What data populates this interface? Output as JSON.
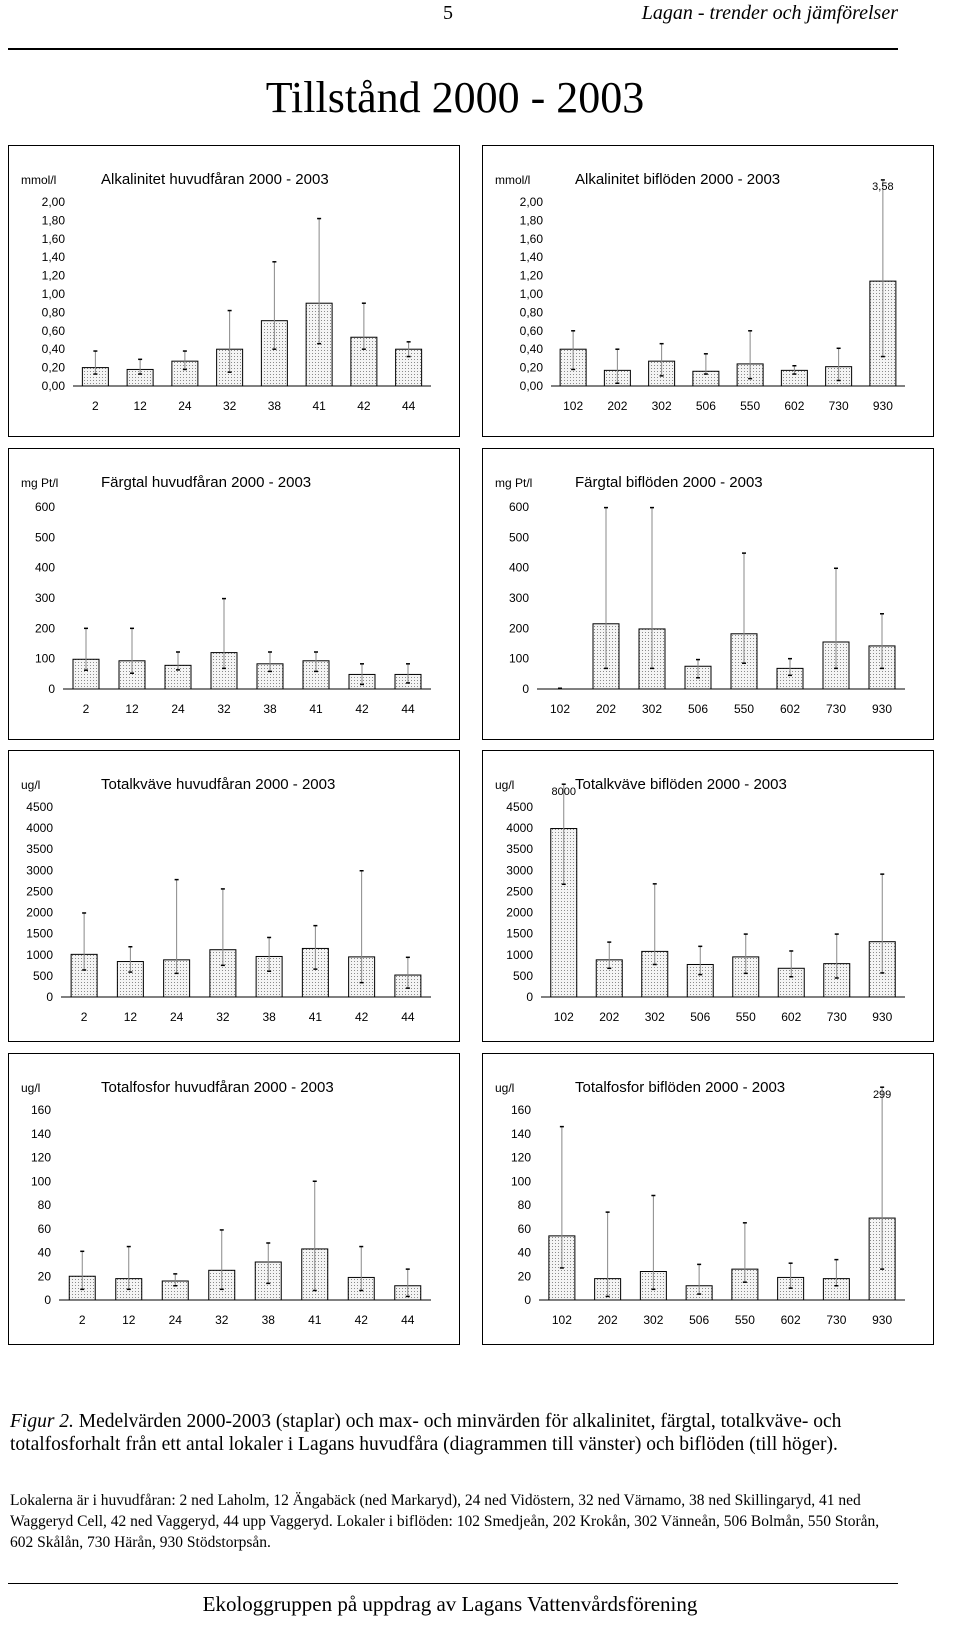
{
  "header": {
    "page_number": "5",
    "running_title": "Lagan - trender och jämförelser"
  },
  "page_title": "Tillstånd 2000 - 2003",
  "charts": [
    {
      "id": "alk-main",
      "ylabel": "mmol/l",
      "title": "Alkalinitet huvudfåran 2000 - 2003",
      "y_ticks": [
        "2,00",
        "1,80",
        "1,60",
        "1,40",
        "1,20",
        "1,00",
        "0,80",
        "0,60",
        "0,40",
        "0,20",
        "0,00"
      ],
      "callouts": []
    },
    {
      "id": "alk-trib",
      "ylabel": "mmol/l",
      "title": "Alkalinitet biflöden 2000 - 2003",
      "y_ticks": [
        "2,00",
        "1,80",
        "1,60",
        "1,40",
        "1,20",
        "1,00",
        "0,80",
        "0,60",
        "0,40",
        "0,20",
        "0,00"
      ],
      "callouts": [
        "3,58"
      ]
    },
    {
      "id": "col-main",
      "ylabel": "mg Pt/l",
      "title": "Färgtal huvudfåran 2000 - 2003",
      "y_ticks": [
        "600",
        "500",
        "400",
        "300",
        "200",
        "100",
        "0"
      ],
      "callouts": []
    },
    {
      "id": "col-trib",
      "ylabel": "mg Pt/l",
      "title": "Färgtal biflöden 2000 - 2003",
      "y_ticks": [
        "600",
        "500",
        "400",
        "300",
        "200",
        "100",
        "0"
      ],
      "callouts": []
    },
    {
      "id": "tn-main",
      "ylabel": "ug/l",
      "title": "Totalkväve huvudfåran 2000 - 2003",
      "y_ticks": [
        "4500",
        "4000",
        "3500",
        "3000",
        "2500",
        "2000",
        "1500",
        "1000",
        "500",
        "0"
      ],
      "callouts": []
    },
    {
      "id": "tn-trib",
      "ylabel": "ug/l",
      "title": "Totalkväve biflöden 2000 - 2003",
      "y_ticks": [
        "4500",
        "4000",
        "3500",
        "3000",
        "2500",
        "2000",
        "1500",
        "1000",
        "500",
        "0"
      ],
      "callouts": [
        "8000"
      ]
    },
    {
      "id": "tp-main",
      "ylabel": "ug/l",
      "title": "Totalfosfor huvudfåran 2000 - 2003",
      "y_ticks": [
        "160",
        "140",
        "120",
        "100",
        "80",
        "60",
        "40",
        "20",
        "0"
      ],
      "callouts": []
    },
    {
      "id": "tp-trib",
      "ylabel": "ug/l",
      "title": "Totalfosfor biflöden 2000 - 2003",
      "y_ticks": [
        "160",
        "140",
        "120",
        "100",
        "80",
        "60",
        "40",
        "20",
        "0"
      ],
      "callouts": [
        "299"
      ]
    }
  ],
  "chart_data": [
    {
      "type": "bar",
      "title": "Alkalinitet huvudfåran 2000 - 2003",
      "ylabel": "mmol/l",
      "ylim": [
        0,
        2.0
      ],
      "categories": [
        "2",
        "12",
        "24",
        "32",
        "38",
        "41",
        "42",
        "44"
      ],
      "values": [
        0.2,
        0.18,
        0.27,
        0.4,
        0.71,
        0.9,
        0.53,
        0.4
      ],
      "max": [
        0.38,
        0.29,
        0.38,
        0.82,
        1.35,
        1.82,
        0.9,
        0.48
      ],
      "min": [
        0.13,
        0.13,
        0.18,
        0.15,
        0.4,
        0.46,
        0.4,
        0.32
      ]
    },
    {
      "type": "bar",
      "title": "Alkalinitet biflöden 2000 - 2003",
      "ylabel": "mmol/l",
      "ylim": [
        0,
        2.0
      ],
      "categories": [
        "102",
        "202",
        "302",
        "506",
        "550",
        "602",
        "730",
        "930"
      ],
      "values": [
        0.4,
        0.17,
        0.27,
        0.16,
        0.24,
        0.17,
        0.21,
        1.14
      ],
      "max": [
        0.6,
        0.4,
        0.46,
        0.35,
        0.6,
        0.22,
        0.41,
        3.58
      ],
      "min": [
        0.18,
        0.03,
        0.11,
        0.13,
        0.08,
        0.13,
        0.06,
        0.32
      ]
    },
    {
      "type": "bar",
      "title": "Färgtal huvudfåran 2000 - 2003",
      "ylabel": "mg Pt/l",
      "ylim": [
        0,
        600
      ],
      "categories": [
        "2",
        "12",
        "24",
        "32",
        "38",
        "41",
        "42",
        "44"
      ],
      "values": [
        98,
        93,
        78,
        120,
        83,
        93,
        48,
        48
      ],
      "max": [
        200,
        200,
        122,
        298,
        122,
        122,
        83,
        83
      ],
      "min": [
        62,
        52,
        63,
        68,
        58,
        58,
        15,
        20
      ]
    },
    {
      "type": "bar",
      "title": "Färgtal biflöden 2000 - 2003",
      "ylabel": "mg Pt/l",
      "ylim": [
        0,
        600
      ],
      "categories": [
        "102",
        "202",
        "302",
        "506",
        "550",
        "602",
        "730",
        "930"
      ],
      "values": [
        0,
        215,
        198,
        75,
        182,
        68,
        155,
        142
      ],
      "max": [
        0,
        598,
        598,
        97,
        448,
        100,
        398,
        248
      ],
      "min": [
        0,
        68,
        68,
        37,
        85,
        45,
        68,
        68
      ]
    },
    {
      "type": "bar",
      "title": "Totalkväve huvudfåran 2000 - 2003",
      "ylabel": "ug/l",
      "ylim": [
        0,
        4500
      ],
      "categories": [
        "2",
        "12",
        "24",
        "32",
        "38",
        "41",
        "42",
        "44"
      ],
      "values": [
        1010,
        840,
        880,
        1120,
        960,
        1150,
        950,
        520
      ],
      "max": [
        1990,
        1190,
        2780,
        2560,
        1410,
        1690,
        2990,
        940
      ],
      "min": [
        640,
        590,
        560,
        750,
        610,
        660,
        340,
        210
      ]
    },
    {
      "type": "bar",
      "title": "Totalkväve biflöden 2000 - 2003",
      "ylabel": "ug/l",
      "ylim": [
        0,
        4500
      ],
      "categories": [
        "102",
        "202",
        "302",
        "506",
        "550",
        "602",
        "730",
        "930"
      ],
      "values": [
        3990,
        880,
        1080,
        770,
        950,
        680,
        790,
        1310
      ],
      "max": [
        8000,
        1300,
        2680,
        1200,
        1490,
        1090,
        1490,
        2910
      ],
      "min": [
        2670,
        680,
        770,
        530,
        560,
        480,
        450,
        570
      ]
    },
    {
      "type": "bar",
      "title": "Totalfosfor huvudfåran 2000 - 2003",
      "ylabel": "ug/l",
      "ylim": [
        0,
        160
      ],
      "categories": [
        "2",
        "12",
        "24",
        "32",
        "38",
        "41",
        "42",
        "44"
      ],
      "values": [
        20,
        18,
        16,
        25,
        32,
        43,
        19,
        12
      ],
      "max": [
        41,
        45,
        22,
        59,
        48,
        100,
        45,
        26
      ],
      "min": [
        9,
        9,
        12,
        9,
        14,
        8,
        8,
        3
      ]
    },
    {
      "type": "bar",
      "title": "Totalfosfor biflöden 2000 - 2003",
      "ylabel": "ug/l",
      "ylim": [
        0,
        160
      ],
      "categories": [
        "102",
        "202",
        "302",
        "506",
        "550",
        "602",
        "730",
        "930"
      ],
      "values": [
        54,
        18,
        24,
        12,
        26,
        19,
        18,
        69
      ],
      "max": [
        146,
        74,
        88,
        30,
        65,
        31,
        34,
        299
      ],
      "min": [
        27,
        3,
        9,
        5,
        15,
        10,
        12,
        26
      ]
    }
  ],
  "caption": {
    "fig_label": "Figur 2.",
    "text": " Medelvärden 2000-2003 (staplar) och max- och minvärden för alkalinitet, färgtal, totalkväve- och totalfosforhalt från ett antal lokaler i Lagans huvudfåra (diagrammen till vänster) och biflöden (till höger).",
    "locations": "Lokalerna är i huvudfåran: 2 ned Laholm, 12 Ängabäck (ned Markaryd), 24 ned Vidöstern, 32 ned Värnamo, 38 ned Skillingaryd, 41 ned Waggeryd Cell, 42 ned Vaggeryd, 44 upp Vaggeryd. Lokaler i biflöden: 102 Smedjeån, 202 Krokån, 302 Vänneån, 506 Bolmån, 550 Storån, 602 Skålån, 730 Härån, 930 Stödstorpsån."
  },
  "footer": "Ekologgruppen på uppdrag av Lagans Vattenvårdsförening"
}
